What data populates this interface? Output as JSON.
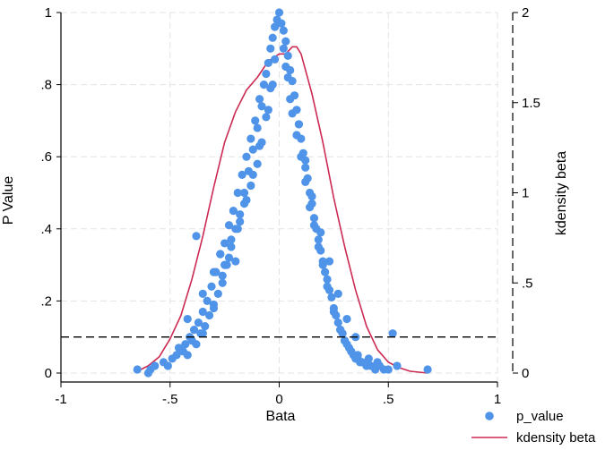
{
  "chart_data": {
    "type": "scatter",
    "xlabel": "Bata",
    "ylabel": "P Value",
    "y2label": "kdensity beta",
    "xlim": [
      -1,
      1
    ],
    "ylim": [
      0,
      1
    ],
    "y2lim": [
      0,
      2
    ],
    "xticks": [
      -1,
      -0.5,
      0,
      0.5,
      1
    ],
    "xtick_labels": [
      "-1",
      "-.5",
      "0",
      ".5",
      "1"
    ],
    "yticks": [
      0,
      0.2,
      0.4,
      0.6,
      0.8,
      1
    ],
    "ytick_labels": [
      "0",
      ".2",
      ".4",
      ".6",
      ".8",
      "1"
    ],
    "y2ticks": [
      0,
      0.5,
      1,
      1.5,
      2
    ],
    "y2tick_labels": [
      "0",
      ".5",
      "1",
      "1.5",
      "2"
    ],
    "grid": true,
    "reference_line": {
      "axis": "y",
      "value": 0.1,
      "style": "dashed"
    },
    "legend": {
      "position": "bottom-right"
    },
    "colors": {
      "scatter": "#4f94e8",
      "density": "#cc2a52",
      "grid": "#e3e3e3"
    },
    "series": [
      {
        "name": "p_value",
        "type": "scatter",
        "x": [
          -0.65,
          -0.6,
          -0.59,
          -0.57,
          -0.53,
          -0.51,
          -0.49,
          -0.47,
          -0.46,
          -0.44,
          -0.43,
          -0.42,
          -0.41,
          -0.4,
          -0.39,
          -0.38,
          -0.37,
          -0.36,
          -0.35,
          -0.34,
          -0.33,
          -0.32,
          -0.31,
          -0.3,
          -0.29,
          -0.28,
          -0.27,
          -0.26,
          -0.25,
          -0.24,
          -0.23,
          -0.22,
          -0.21,
          -0.2,
          -0.19,
          -0.18,
          -0.17,
          -0.16,
          -0.15,
          -0.14,
          -0.13,
          -0.12,
          -0.11,
          -0.1,
          -0.09,
          -0.08,
          -0.07,
          -0.06,
          -0.05,
          -0.04,
          -0.03,
          -0.02,
          -0.01,
          0,
          0.01,
          0.02,
          0.03,
          0.04,
          0.05,
          0.06,
          0.07,
          0.08,
          0.09,
          0.1,
          0.11,
          0.12,
          0.13,
          0.14,
          0.15,
          0.16,
          0.17,
          0.18,
          0.19,
          0.2,
          0.21,
          0.22,
          0.23,
          0.24,
          0.25,
          0.26,
          0.27,
          0.28,
          0.29,
          0.3,
          0.31,
          0.32,
          0.33,
          0.34,
          0.35,
          0.36,
          0.37,
          0.38,
          0.4,
          0.42,
          0.44,
          0.46,
          0.48,
          0.5,
          0.52,
          0.54,
          0.68,
          -0.42,
          -0.38,
          -0.35,
          -0.3,
          -0.27,
          -0.25,
          -0.22,
          -0.2,
          -0.18,
          -0.15,
          -0.13,
          -0.1,
          -0.08,
          -0.06,
          -0.04,
          -0.02,
          0.02,
          0.04,
          0.06,
          0.08,
          0.1,
          0.12,
          0.14,
          0.16,
          0.18,
          0.2,
          0.22,
          0.25,
          0.28,
          0.3,
          0.33,
          0.36,
          -0.35,
          -0.3,
          -0.26,
          -0.23,
          -0.19,
          -0.16,
          -0.12,
          -0.09,
          -0.05,
          -0.03,
          0.03,
          0.05,
          0.09,
          0.12,
          0.15,
          0.19,
          0.23,
          0.27,
          0.31,
          0.35,
          0.41,
          0.45
        ],
        "y": [
          0.01,
          0.0,
          0.01,
          0.02,
          0.03,
          0.02,
          0.04,
          0.05,
          0.07,
          0.06,
          0.08,
          0.05,
          0.1,
          0.09,
          0.12,
          0.08,
          0.14,
          0.11,
          0.17,
          0.13,
          0.2,
          0.16,
          0.24,
          0.18,
          0.28,
          0.22,
          0.33,
          0.27,
          0.36,
          0.3,
          0.41,
          0.35,
          0.45,
          0.4,
          0.5,
          0.44,
          0.55,
          0.5,
          0.6,
          0.56,
          0.65,
          0.62,
          0.7,
          0.68,
          0.76,
          0.74,
          0.8,
          0.83,
          0.86,
          0.9,
          0.93,
          0.96,
          0.98,
          1.0,
          0.97,
          0.95,
          0.92,
          0.88,
          0.84,
          0.81,
          0.77,
          0.73,
          0.69,
          0.65,
          0.61,
          0.57,
          0.54,
          0.5,
          0.47,
          0.43,
          0.4,
          0.37,
          0.34,
          0.31,
          0.28,
          0.26,
          0.23,
          0.21,
          0.18,
          0.16,
          0.14,
          0.12,
          0.11,
          0.09,
          0.08,
          0.07,
          0.06,
          0.05,
          0.04,
          0.04,
          0.03,
          0.03,
          0.02,
          0.02,
          0.01,
          0.02,
          0.01,
          0.01,
          0.11,
          0.02,
          0.01,
          0.15,
          0.38,
          0.22,
          0.28,
          0.33,
          0.3,
          0.37,
          0.31,
          0.42,
          0.48,
          0.52,
          0.58,
          0.64,
          0.71,
          0.79,
          0.87,
          0.9,
          0.82,
          0.72,
          0.66,
          0.6,
          0.53,
          0.46,
          0.41,
          0.35,
          0.3,
          0.24,
          0.17,
          0.12,
          0.09,
          0.06,
          0.05,
          0.11,
          0.19,
          0.25,
          0.32,
          0.4,
          0.47,
          0.55,
          0.63,
          0.73,
          0.8,
          0.85,
          0.76,
          0.69,
          0.59,
          0.49,
          0.39,
          0.31,
          0.22,
          0.15,
          0.1,
          0.04,
          0.03
        ]
      },
      {
        "name": "kdensity beta",
        "type": "line",
        "axis": "y2",
        "x": [
          -0.65,
          -0.6,
          -0.55,
          -0.5,
          -0.45,
          -0.4,
          -0.35,
          -0.3,
          -0.25,
          -0.2,
          -0.15,
          -0.1,
          -0.05,
          0.0,
          0.03,
          0.06,
          0.08,
          0.1,
          0.15,
          0.2,
          0.25,
          0.3,
          0.35,
          0.4,
          0.45,
          0.5,
          0.55,
          0.6,
          0.68
        ],
        "y": [
          0.01,
          0.04,
          0.09,
          0.19,
          0.32,
          0.52,
          0.76,
          1.03,
          1.28,
          1.45,
          1.57,
          1.64,
          1.73,
          1.77,
          1.77,
          1.81,
          1.81,
          1.77,
          1.55,
          1.28,
          0.97,
          0.7,
          0.46,
          0.26,
          0.13,
          0.06,
          0.03,
          0.01,
          0.0
        ]
      }
    ]
  }
}
